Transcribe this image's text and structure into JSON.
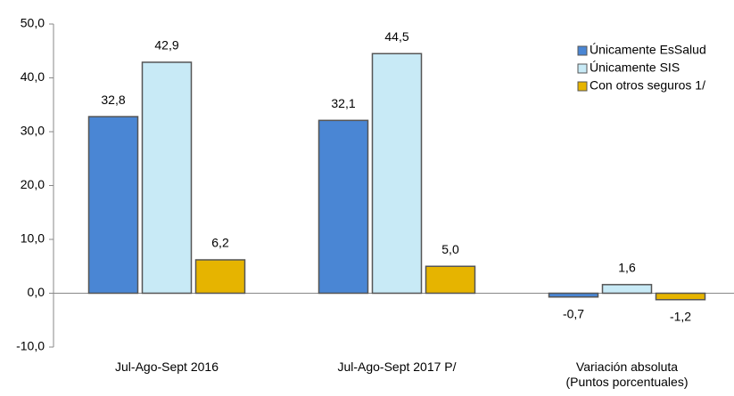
{
  "chart_data": {
    "type": "bar",
    "categories": [
      "Jul-Ago-Sept 2016",
      "Jul-Ago-Sept  2017 P/",
      "Variación absoluta\n(Puntos porcentuales)"
    ],
    "series": [
      {
        "name": "Únicamente EsSalud",
        "color": "#4a86d4",
        "values": [
          32.8,
          32.1,
          -0.7
        ],
        "value_labels": [
          "32,8",
          "32,1",
          "-0,7"
        ]
      },
      {
        "name": "Únicamente SIS",
        "color": "#c8eaf6",
        "values": [
          42.9,
          44.5,
          1.6
        ],
        "value_labels": [
          "42,9",
          "44,5",
          "1,6"
        ]
      },
      {
        "name": "Con otros seguros 1/",
        "color": "#e6b400",
        "values": [
          6.2,
          5.0,
          -1.2
        ],
        "value_labels": [
          "6,2",
          "5,0",
          "-1,2"
        ]
      }
    ],
    "ylim": [
      -10,
      50
    ],
    "yticks": [
      {
        "value": -10,
        "label": "-10,0"
      },
      {
        "value": 0,
        "label": "0,0"
      },
      {
        "value": 10,
        "label": "10,0"
      },
      {
        "value": 20,
        "label": "20,0"
      },
      {
        "value": 30,
        "label": "30,0"
      },
      {
        "value": 40,
        "label": "40,0"
      },
      {
        "value": 50,
        "label": "50,0"
      }
    ],
    "legend": "upper right"
  }
}
